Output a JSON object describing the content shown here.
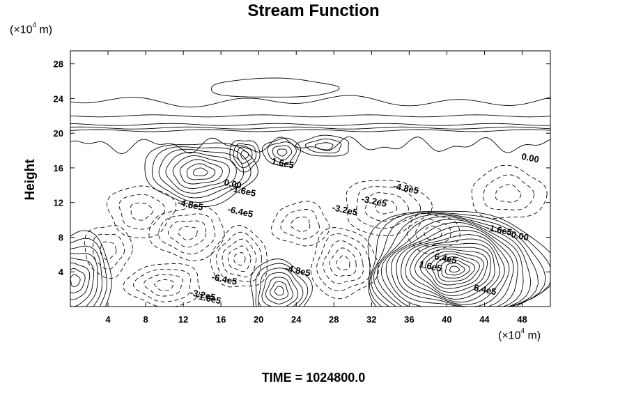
{
  "title": "Stream Function",
  "footer": "TIME = 1024800.0",
  "y_unit": {
    "prefix": "(×10",
    "exp": "4",
    "suffix": " m)"
  },
  "x_unit": {
    "prefix": "(×10",
    "exp": "4",
    "suffix": " m)"
  },
  "chart_data": {
    "type": "contour",
    "title": "Stream Function",
    "ylabel": "Height",
    "xlabel": "",
    "x_unit": "×10^4 m",
    "y_unit": "×10^4 m",
    "xlim": [
      0,
      51
    ],
    "ylim": [
      0,
      29.5
    ],
    "x_ticks": [
      4,
      8,
      12,
      16,
      20,
      24,
      28,
      32,
      36,
      40,
      44,
      48
    ],
    "y_ticks": [
      4,
      8,
      12,
      16,
      20,
      24,
      28
    ],
    "grid": false,
    "line_styles": {
      "positive": "solid",
      "negative": "dashed"
    },
    "contour_labels": [
      {
        "text": "1.6e5",
        "x": 22.5,
        "y": 16.2
      },
      {
        "text": "0.00",
        "x": 48.8,
        "y": 16.8
      },
      {
        "text": "0.00",
        "x": 17.2,
        "y": 13.8
      },
      {
        "text": "-1.6e5",
        "x": 18.3,
        "y": 13.0
      },
      {
        "text": "-4.8e5",
        "x": 12.7,
        "y": 11.4
      },
      {
        "text": "-6.4e5",
        "x": 18.0,
        "y": 10.6
      },
      {
        "text": "-4.8e5",
        "x": 35.6,
        "y": 13.3
      },
      {
        "text": "-3.2e5",
        "x": 32.2,
        "y": 11.8
      },
      {
        "text": "-3.2e5",
        "x": 29.1,
        "y": 10.8
      },
      {
        "text": "-1.6e5",
        "x": 45.5,
        "y": 8.5
      },
      {
        "text": "0.00",
        "x": 47.7,
        "y": 7.8
      },
      {
        "text": "-4.8e5",
        "x": 24.1,
        "y": 3.8
      },
      {
        "text": "-6.4e5",
        "x": 16.3,
        "y": 2.8
      },
      {
        "text": "1.6e5",
        "x": 38.2,
        "y": 4.3
      },
      {
        "text": "6.4e5",
        "x": 39.8,
        "y": 5.2
      },
      {
        "text": "6.4e5",
        "x": 44.0,
        "y": 1.6
      },
      {
        "text": "-3.2e5",
        "x": 14.0,
        "y": 1.0
      },
      {
        "text": "-1.6e5",
        "x": 14.6,
        "y": 0.6
      }
    ],
    "features": [
      {
        "sign": "positive",
        "cx": 13.8,
        "cy": 15.5,
        "rx": 6.0,
        "ry": 3.6,
        "levels": 8
      },
      {
        "sign": "positive",
        "cx": 18.5,
        "cy": 17.5,
        "rx": 1.6,
        "ry": 1.8,
        "levels": 4
      },
      {
        "sign": "positive",
        "cx": 22.5,
        "cy": 17.8,
        "rx": 2.0,
        "ry": 1.6,
        "levels": 4
      },
      {
        "sign": "positive",
        "cx": 27.0,
        "cy": 18.5,
        "rx": 2.8,
        "ry": 1.2,
        "levels": 3
      },
      {
        "sign": "positive",
        "cx": 22.2,
        "cy": 1.8,
        "rx": 3.2,
        "ry": 3.6,
        "levels": 7
      },
      {
        "sign": "positive",
        "cx": 40.8,
        "cy": 4.3,
        "rx": 10.0,
        "ry": 7.0,
        "levels": 20
      },
      {
        "sign": "positive",
        "cx": 0.5,
        "cy": 3.0,
        "rx": 4.0,
        "ry": 5.5,
        "levels": 8
      },
      {
        "sign": "negative",
        "cx": 12.5,
        "cy": 8.5,
        "rx": 4.0,
        "ry": 3.0,
        "levels": 4
      },
      {
        "sign": "negative",
        "cx": 18.0,
        "cy": 5.5,
        "rx": 3.0,
        "ry": 3.5,
        "levels": 5
      },
      {
        "sign": "negative",
        "cx": 29.0,
        "cy": 5.0,
        "rx": 3.5,
        "ry": 4.0,
        "levels": 5
      },
      {
        "sign": "negative",
        "cx": 33.5,
        "cy": 11.5,
        "rx": 4.5,
        "ry": 3.2,
        "levels": 4
      },
      {
        "sign": "negative",
        "cx": 7.5,
        "cy": 11.0,
        "rx": 3.5,
        "ry": 3.0,
        "levels": 3
      },
      {
        "sign": "negative",
        "cx": 10.0,
        "cy": 2.5,
        "rx": 4.0,
        "ry": 2.5,
        "levels": 4
      },
      {
        "sign": "negative",
        "cx": 24.5,
        "cy": 9.5,
        "rx": 3.0,
        "ry": 2.5,
        "levels": 3
      },
      {
        "sign": "negative",
        "cx": 46.5,
        "cy": 13.0,
        "rx": 4.0,
        "ry": 3.0,
        "levels": 3
      },
      {
        "sign": "negative",
        "cx": 38.5,
        "cy": 8.5,
        "rx": 2.8,
        "ry": 2.2,
        "levels": 3
      },
      {
        "sign": "negative",
        "cx": 4.0,
        "cy": 6.5,
        "rx": 2.5,
        "ry": 3.0,
        "levels": 3
      }
    ],
    "upper_bands": [
      {
        "y": 20.3
      },
      {
        "y": 20.6
      },
      {
        "y": 21.0
      },
      {
        "y": 22.0
      },
      {
        "y": 23.7
      }
    ],
    "upper_blob": {
      "cx": 21.5,
      "cy": 25.2,
      "rx": 6.8,
      "ry": 1.1
    }
  }
}
